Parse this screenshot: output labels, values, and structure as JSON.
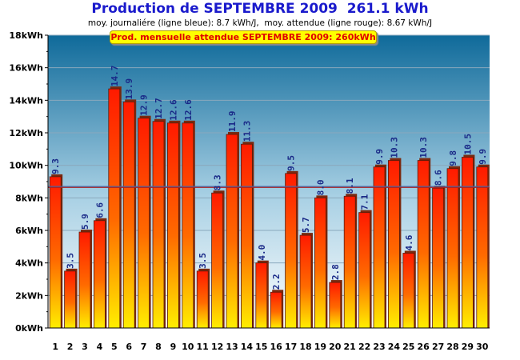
{
  "title": "Production de SEPTEMBRE 2009  261.1 kWh",
  "subtitle": "moy. journaliére (ligne bleue): 8.7 kWh/J,  moy. attendue (ligne rouge): 8.67 kWh/J",
  "expected_label": "Prod. mensuelle attendue SEPTEMBRE 2009: 260kWh",
  "colors": {
    "title": "#1a1acc",
    "bar_top": "#ff1a00",
    "bar_bottom": "#ffee00",
    "avg_blue_line": "#4466aa",
    "avg_red_line": "#aa2222",
    "value_label": "#1a2a88",
    "plot_top": "#0f6a9a",
    "plot_bottom": "#ffffff"
  },
  "chart_data": {
    "type": "bar",
    "categories": [
      "1",
      "2",
      "3",
      "4",
      "5",
      "6",
      "7",
      "8",
      "9",
      "10",
      "11",
      "12",
      "13",
      "14",
      "15",
      "16",
      "17",
      "18",
      "19",
      "20",
      "21",
      "22",
      "23",
      "24",
      "25",
      "26",
      "27",
      "28",
      "29",
      "30"
    ],
    "values": [
      9.3,
      3.5,
      5.9,
      6.6,
      14.7,
      13.9,
      12.9,
      12.7,
      12.6,
      12.6,
      3.5,
      8.3,
      11.9,
      11.3,
      4.0,
      2.2,
      9.5,
      5.7,
      8.0,
      2.8,
      8.1,
      7.1,
      9.9,
      10.3,
      4.6,
      10.3,
      8.6,
      9.8,
      10.5,
      9.9
    ],
    "value_labels": [
      "9.3",
      "3.5",
      "5.9",
      "6.6",
      "14.7",
      "13.9",
      "12.9",
      "12.7",
      "12.6",
      "12.6",
      "3.5",
      "8.3",
      "11.9",
      "11.3",
      "4.0",
      "2.2",
      "9.5",
      "5.7",
      "8.0",
      "2.8",
      "8.1",
      "7.1",
      "9.9",
      "10.3",
      "4.6",
      "10.3",
      "8.6",
      "9.8",
      "10.5",
      "9.9"
    ],
    "yticks": [
      0,
      2,
      4,
      6,
      8,
      10,
      12,
      14,
      16,
      18
    ],
    "ytick_labels": [
      "0kWh",
      "2kWh",
      "4kWh",
      "6kWh",
      "8kWh",
      "10kWh",
      "12kWh",
      "14kWh",
      "16kWh",
      "18kWh"
    ],
    "ylim": [
      0,
      18
    ],
    "unit": "kWh",
    "avg_daily": 8.7,
    "avg_expected": 8.67,
    "grid": true
  }
}
